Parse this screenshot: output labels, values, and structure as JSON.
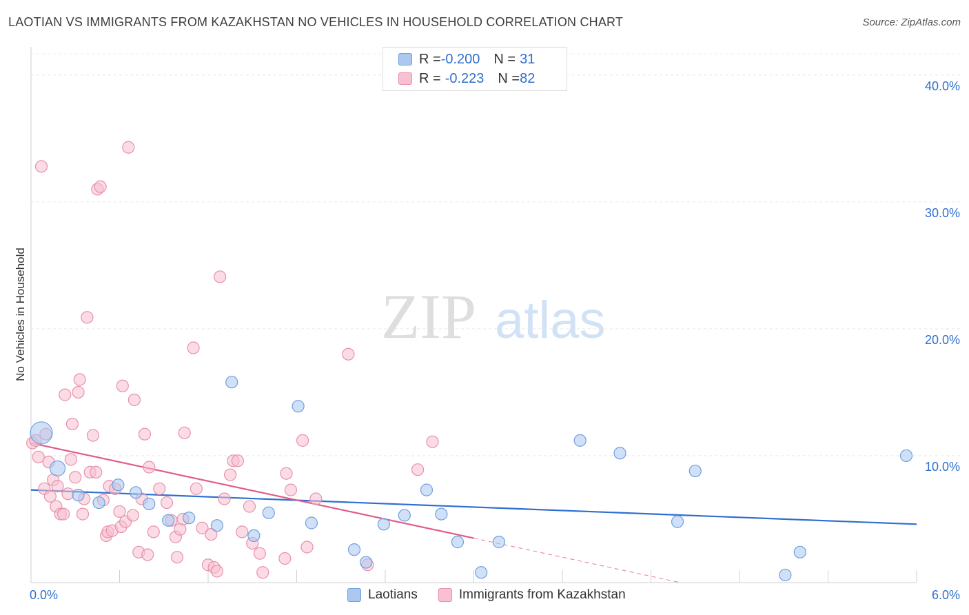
{
  "title": "LAOTIAN VS IMMIGRANTS FROM KAZAKHSTAN NO VEHICLES IN HOUSEHOLD CORRELATION CHART",
  "source": "Source: ZipAtlas.com",
  "watermark": {
    "zip": "ZIP",
    "atlas": "atlas"
  },
  "legend": {
    "rows": [
      {
        "r_label": "R = ",
        "r_value": "-0.200",
        "n_label": "N = ",
        "n_value": "31",
        "color": "#aac8f0",
        "border": "#6f9fe0"
      },
      {
        "r_label": "R = ",
        "r_value": "-0.223",
        "n_label": "N = ",
        "n_value": "82",
        "color": "#f8c0d0",
        "border": "#e890ac"
      }
    ]
  },
  "chart_data": {
    "type": "scatter",
    "title": "LAOTIAN VS IMMIGRANTS FROM KAZAKHSTAN NO VEHICLES IN HOUSEHOLD CORRELATION CHART",
    "xlabel": "",
    "ylabel": "No Vehicles in Household",
    "xlim": [
      0,
      6
    ],
    "ylim": [
      0,
      42
    ],
    "x_tick_labels": [
      "0.0%",
      "6.0%"
    ],
    "y_ticks": [
      10,
      20,
      30,
      40
    ],
    "y_tick_labels": [
      "10.0%",
      "20.0%",
      "30.0%",
      "40.0%"
    ],
    "grid": true,
    "legend_position": "top-center",
    "series": [
      {
        "name": "Laotians",
        "color": "#aac8f0",
        "stroke": "#6f9fe0",
        "line_color": "#2f6fd0",
        "trend": {
          "x": [
            0,
            6
          ],
          "y": [
            7.3,
            4.6
          ],
          "dashed_x": []
        },
        "points": [
          {
            "x": 0.07,
            "y": 11.8,
            "s": "big"
          },
          {
            "x": 0.18,
            "y": 9.0,
            "s": "mid"
          },
          {
            "x": 0.32,
            "y": 6.9
          },
          {
            "x": 0.46,
            "y": 6.3
          },
          {
            "x": 0.59,
            "y": 7.7
          },
          {
            "x": 0.71,
            "y": 7.1
          },
          {
            "x": 0.8,
            "y": 6.2
          },
          {
            "x": 0.93,
            "y": 4.9
          },
          {
            "x": 1.07,
            "y": 5.1
          },
          {
            "x": 1.26,
            "y": 4.5
          },
          {
            "x": 1.36,
            "y": 15.8
          },
          {
            "x": 1.51,
            "y": 3.7
          },
          {
            "x": 1.61,
            "y": 5.5
          },
          {
            "x": 1.81,
            "y": 13.9
          },
          {
            "x": 1.9,
            "y": 4.7
          },
          {
            "x": 2.19,
            "y": 2.6
          },
          {
            "x": 2.27,
            "y": 1.6
          },
          {
            "x": 2.39,
            "y": 4.6
          },
          {
            "x": 2.53,
            "y": 5.3
          },
          {
            "x": 2.68,
            "y": 7.3
          },
          {
            "x": 2.78,
            "y": 5.4
          },
          {
            "x": 2.89,
            "y": 3.2
          },
          {
            "x": 3.05,
            "y": 0.8
          },
          {
            "x": 3.17,
            "y": 3.2
          },
          {
            "x": 3.72,
            "y": 11.2
          },
          {
            "x": 3.99,
            "y": 10.2
          },
          {
            "x": 4.38,
            "y": 4.8
          },
          {
            "x": 4.5,
            "y": 8.8
          },
          {
            "x": 5.11,
            "y": 0.6
          },
          {
            "x": 5.21,
            "y": 2.4
          },
          {
            "x": 5.93,
            "y": 10.0
          }
        ]
      },
      {
        "name": "Immigrants from Kazakhstan",
        "color": "#f8c0d0",
        "stroke": "#e890ac",
        "line_color": "#e05c8c",
        "trend": {
          "x": [
            0,
            3.0
          ],
          "y": [
            11.0,
            3.5
          ],
          "dashed_x": [
            3.0,
            4.4
          ],
          "dashed_y": [
            3.5,
            0.0
          ]
        },
        "points": [
          {
            "x": 0.01,
            "y": 11.0
          },
          {
            "x": 0.03,
            "y": 11.2
          },
          {
            "x": 0.05,
            "y": 9.9
          },
          {
            "x": 0.07,
            "y": 32.8
          },
          {
            "x": 0.09,
            "y": 7.4
          },
          {
            "x": 0.1,
            "y": 11.7
          },
          {
            "x": 0.12,
            "y": 9.5
          },
          {
            "x": 0.13,
            "y": 6.8
          },
          {
            "x": 0.15,
            "y": 8.1
          },
          {
            "x": 0.17,
            "y": 6.0
          },
          {
            "x": 0.18,
            "y": 7.6
          },
          {
            "x": 0.2,
            "y": 5.4
          },
          {
            "x": 0.22,
            "y": 5.4
          },
          {
            "x": 0.23,
            "y": 14.8
          },
          {
            "x": 0.25,
            "y": 7.0
          },
          {
            "x": 0.27,
            "y": 9.7
          },
          {
            "x": 0.28,
            "y": 12.5
          },
          {
            "x": 0.3,
            "y": 8.3
          },
          {
            "x": 0.32,
            "y": 15.0
          },
          {
            "x": 0.33,
            "y": 16.0
          },
          {
            "x": 0.35,
            "y": 5.4
          },
          {
            "x": 0.36,
            "y": 6.6
          },
          {
            "x": 0.38,
            "y": 20.9
          },
          {
            "x": 0.4,
            "y": 8.7
          },
          {
            "x": 0.42,
            "y": 11.6
          },
          {
            "x": 0.44,
            "y": 8.7
          },
          {
            "x": 0.45,
            "y": 31.0
          },
          {
            "x": 0.47,
            "y": 31.2
          },
          {
            "x": 0.49,
            "y": 6.5
          },
          {
            "x": 0.51,
            "y": 3.7
          },
          {
            "x": 0.52,
            "y": 4.0
          },
          {
            "x": 0.53,
            "y": 7.6
          },
          {
            "x": 0.55,
            "y": 4.1
          },
          {
            "x": 0.57,
            "y": 7.4
          },
          {
            "x": 0.6,
            "y": 5.6
          },
          {
            "x": 0.61,
            "y": 4.4
          },
          {
            "x": 0.62,
            "y": 15.5
          },
          {
            "x": 0.64,
            "y": 4.8
          },
          {
            "x": 0.66,
            "y": 34.3
          },
          {
            "x": 0.69,
            "y": 5.3
          },
          {
            "x": 0.7,
            "y": 14.4
          },
          {
            "x": 0.73,
            "y": 2.4
          },
          {
            "x": 0.75,
            "y": 6.6
          },
          {
            "x": 0.77,
            "y": 11.7
          },
          {
            "x": 0.79,
            "y": 2.2
          },
          {
            "x": 0.8,
            "y": 9.1
          },
          {
            "x": 0.83,
            "y": 4.0
          },
          {
            "x": 0.87,
            "y": 7.4
          },
          {
            "x": 0.92,
            "y": 6.3
          },
          {
            "x": 0.95,
            "y": 4.9
          },
          {
            "x": 0.98,
            "y": 3.6
          },
          {
            "x": 0.99,
            "y": 2.0
          },
          {
            "x": 1.01,
            "y": 4.2
          },
          {
            "x": 1.03,
            "y": 5.0
          },
          {
            "x": 1.04,
            "y": 11.8
          },
          {
            "x": 1.1,
            "y": 18.5
          },
          {
            "x": 1.12,
            "y": 7.4
          },
          {
            "x": 1.16,
            "y": 4.3
          },
          {
            "x": 1.2,
            "y": 1.4
          },
          {
            "x": 1.22,
            "y": 3.8
          },
          {
            "x": 1.24,
            "y": 1.2
          },
          {
            "x": 1.26,
            "y": 0.9
          },
          {
            "x": 1.28,
            "y": 24.1
          },
          {
            "x": 1.31,
            "y": 6.6
          },
          {
            "x": 1.35,
            "y": 8.5
          },
          {
            "x": 1.37,
            "y": 9.6
          },
          {
            "x": 1.4,
            "y": 9.6
          },
          {
            "x": 1.43,
            "y": 4.0
          },
          {
            "x": 1.48,
            "y": 6.0
          },
          {
            "x": 1.5,
            "y": 3.1
          },
          {
            "x": 1.55,
            "y": 2.3
          },
          {
            "x": 1.57,
            "y": 0.8
          },
          {
            "x": 1.72,
            "y": 1.9
          },
          {
            "x": 1.73,
            "y": 8.6
          },
          {
            "x": 1.76,
            "y": 7.3
          },
          {
            "x": 1.84,
            "y": 11.2
          },
          {
            "x": 1.87,
            "y": 2.8
          },
          {
            "x": 1.93,
            "y": 6.6
          },
          {
            "x": 2.15,
            "y": 18.0
          },
          {
            "x": 2.28,
            "y": 1.4
          },
          {
            "x": 2.62,
            "y": 8.9
          },
          {
            "x": 2.72,
            "y": 11.1
          }
        ]
      }
    ]
  }
}
